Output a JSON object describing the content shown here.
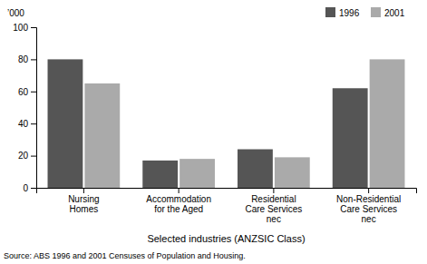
{
  "chart_data": {
    "type": "bar",
    "categories": [
      "Nursing\nHomes",
      "Accommodation\nfor the Aged",
      "Residential\nCare Services\nnec",
      "Non-Residential\nCare Services\nnec"
    ],
    "series": [
      {
        "name": "1996",
        "color": "#555555",
        "values": [
          80,
          17,
          24,
          62
        ]
      },
      {
        "name": "2001",
        "color": "#aaaaaa",
        "values": [
          65,
          18,
          19,
          80
        ]
      }
    ],
    "y_label": "’000",
    "x_label": "Selected industries (ANZSIC Class)",
    "annotations": [
      "Source: ABS 1996 and 2001 Censuses of Population and Housing."
    ],
    "ylim": [
      0,
      100
    ],
    "yticks": [
      0,
      20,
      40,
      60,
      80,
      100
    ],
    "legend": "upper right",
    "grid": false
  }
}
